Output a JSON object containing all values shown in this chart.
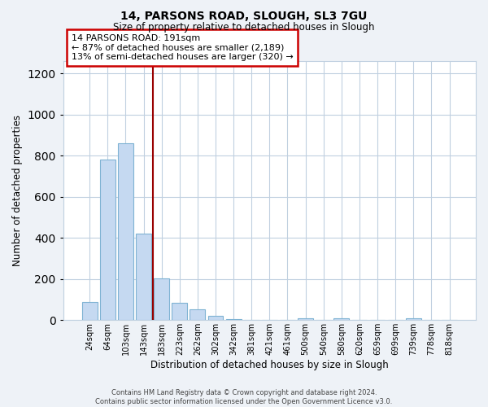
{
  "title": "14, PARSONS ROAD, SLOUGH, SL3 7GU",
  "subtitle": "Size of property relative to detached houses in Slough",
  "xlabel": "Distribution of detached houses by size in Slough",
  "ylabel": "Number of detached properties",
  "bar_labels": [
    "24sqm",
    "64sqm",
    "103sqm",
    "143sqm",
    "183sqm",
    "223sqm",
    "262sqm",
    "302sqm",
    "342sqm",
    "381sqm",
    "421sqm",
    "461sqm",
    "500sqm",
    "540sqm",
    "580sqm",
    "620sqm",
    "659sqm",
    "699sqm",
    "739sqm",
    "778sqm",
    "818sqm"
  ],
  "bar_values": [
    90,
    780,
    860,
    420,
    205,
    85,
    52,
    22,
    5,
    2,
    0,
    0,
    10,
    0,
    10,
    0,
    0,
    0,
    10,
    0,
    0
  ],
  "bar_color": "#c5d9f1",
  "bar_edgecolor": "#7fb3d3",
  "vline_x": 4.0,
  "vline_color": "#990000",
  "annotation_line1": "14 PARSONS ROAD: 191sqm",
  "annotation_line2": "← 87% of detached houses are smaller (2,189)",
  "annotation_line3": "13% of semi-detached houses are larger (320) →",
  "annotation_box_edgecolor": "#cc0000",
  "ylim": [
    0,
    1260
  ],
  "yticks": [
    0,
    200,
    400,
    600,
    800,
    1000,
    1200
  ],
  "footer_line1": "Contains HM Land Registry data © Crown copyright and database right 2024.",
  "footer_line2": "Contains public sector information licensed under the Open Government Licence v3.0.",
  "bg_color": "#eef2f7",
  "plot_bg_color": "#ffffff",
  "grid_color": "#c0d0e0"
}
